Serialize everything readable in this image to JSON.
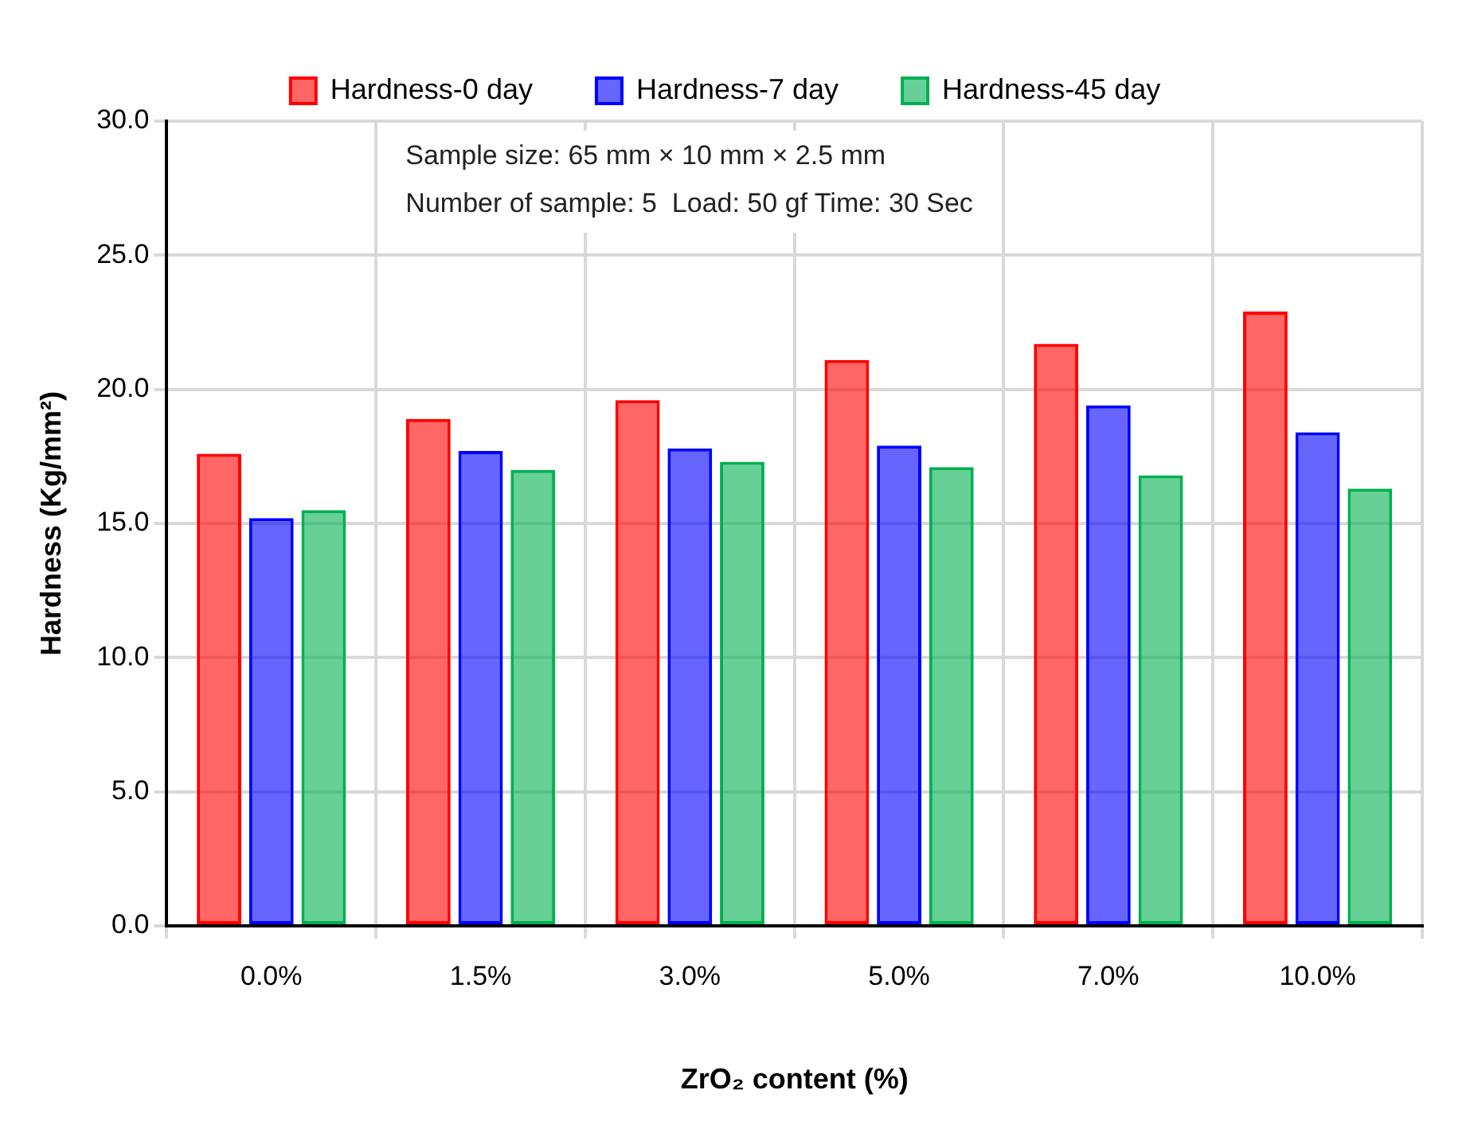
{
  "chart_data": {
    "type": "bar",
    "xlabel": "ZrO₂ content (%)",
    "ylabel": "Hardness (Kg/mm²)",
    "categories": [
      "0.0%",
      "1.5%",
      "3.0%",
      "5.0%",
      "7.0%",
      "10.0%"
    ],
    "series": [
      {
        "name": "Hardness-0 day",
        "color": "#ff0000",
        "values": [
          17.6,
          18.9,
          19.6,
          21.1,
          21.7,
          22.9
        ]
      },
      {
        "name": "Hardness-7 day",
        "color": "#0000ff",
        "values": [
          15.2,
          17.7,
          17.8,
          17.9,
          19.4,
          18.4
        ]
      },
      {
        "name": "Hardness-45 day",
        "color": "#00b050",
        "values": [
          15.5,
          17.0,
          17.3,
          17.1,
          16.8,
          16.3
        ]
      }
    ],
    "ylim": [
      0,
      30
    ],
    "yticks": [
      {
        "value": 0,
        "label": "0.0"
      },
      {
        "value": 5,
        "label": "5.0"
      },
      {
        "value": 10,
        "label": "10.0"
      },
      {
        "value": 15,
        "label": "15.0"
      },
      {
        "value": 20,
        "label": "20.0"
      },
      {
        "value": 25,
        "label": "25.0"
      },
      {
        "value": 30,
        "label": "30.0"
      }
    ],
    "grid": true,
    "legend": "top",
    "annotations": [
      "Sample size: 65 mm × 10 mm × 2.5 mm",
      "Number of sample: 5  Load: 50 gf Time: 30 Sec"
    ]
  }
}
